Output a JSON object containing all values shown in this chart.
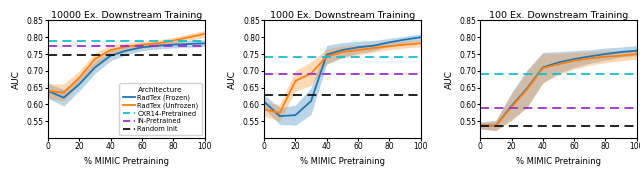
{
  "panels": [
    {
      "title": "10000 Ex. Downstream Training",
      "ylim": [
        0.5,
        0.85
      ],
      "x": [
        0,
        10,
        20,
        30,
        40,
        50,
        60,
        70,
        80,
        90,
        100
      ],
      "frozen_mean": [
        0.64,
        0.62,
        0.66,
        0.71,
        0.745,
        0.76,
        0.77,
        0.775,
        0.778,
        0.78,
        0.782
      ],
      "frozen_std": [
        0.022,
        0.025,
        0.02,
        0.018,
        0.015,
        0.012,
        0.01,
        0.01,
        0.01,
        0.01,
        0.01
      ],
      "unfrozen_mean": [
        0.64,
        0.635,
        0.68,
        0.735,
        0.762,
        0.772,
        0.778,
        0.782,
        0.79,
        0.8,
        0.81
      ],
      "unfrozen_std": [
        0.022,
        0.025,
        0.02,
        0.018,
        0.015,
        0.012,
        0.01,
        0.01,
        0.01,
        0.01,
        0.01
      ],
      "cxr14": 0.79,
      "in_pretrained": 0.775,
      "random_init": 0.748,
      "show_legend": true,
      "show_ylabel": true
    },
    {
      "title": "1000 Ex. Downstream Training",
      "ylim": [
        0.5,
        0.85
      ],
      "x": [
        0,
        10,
        20,
        30,
        40,
        50,
        60,
        70,
        80,
        90,
        100
      ],
      "frozen_mean": [
        0.608,
        0.565,
        0.568,
        0.61,
        0.748,
        0.762,
        0.77,
        0.775,
        0.785,
        0.793,
        0.8
      ],
      "frozen_std": [
        0.02,
        0.025,
        0.03,
        0.04,
        0.028,
        0.022,
        0.018,
        0.015,
        0.012,
        0.01,
        0.01
      ],
      "unfrozen_mean": [
        0.585,
        0.575,
        0.67,
        0.692,
        0.743,
        0.756,
        0.762,
        0.768,
        0.773,
        0.778,
        0.782
      ],
      "unfrozen_std": [
        0.02,
        0.025,
        0.03,
        0.035,
        0.022,
        0.018,
        0.015,
        0.012,
        0.01,
        0.01,
        0.01
      ],
      "cxr14": 0.74,
      "in_pretrained": 0.692,
      "random_init": 0.627,
      "show_legend": false,
      "show_ylabel": true
    },
    {
      "title": "100 Ex. Downstream Training",
      "ylim": [
        0.5,
        0.85
      ],
      "x": [
        0,
        10,
        20,
        30,
        40,
        50,
        60,
        70,
        80,
        90,
        100
      ],
      "frozen_mean": [
        0.537,
        0.537,
        0.595,
        0.648,
        0.71,
        0.725,
        0.735,
        0.743,
        0.75,
        0.756,
        0.76
      ],
      "frozen_std": [
        0.01,
        0.015,
        0.04,
        0.055,
        0.045,
        0.032,
        0.025,
        0.02,
        0.018,
        0.015,
        0.015
      ],
      "unfrozen_mean": [
        0.537,
        0.537,
        0.592,
        0.645,
        0.708,
        0.72,
        0.73,
        0.737,
        0.742,
        0.745,
        0.75
      ],
      "unfrozen_std": [
        0.01,
        0.015,
        0.04,
        0.055,
        0.045,
        0.032,
        0.025,
        0.02,
        0.018,
        0.015,
        0.015
      ],
      "cxr14": 0.69,
      "in_pretrained": 0.59,
      "random_init": 0.537,
      "show_legend": false,
      "show_ylabel": true
    }
  ],
  "frozen_color": "#1f77b4",
  "unfrozen_color": "#ff7f0e",
  "cxr14_color": "#17becf",
  "in_pretrained_color": "#9b30d0",
  "random_init_color": "#111111",
  "frozen_alpha": 0.3,
  "unfrozen_alpha": 0.3,
  "xlabel": "% MIMIC Pretraining",
  "ylabel": "AUC",
  "legend_labels": [
    "RadTex (Frozen)",
    "RadTex (Unfrozen)",
    "CXR14-Pretrained",
    "IN-Pretrained",
    "Random Init"
  ]
}
